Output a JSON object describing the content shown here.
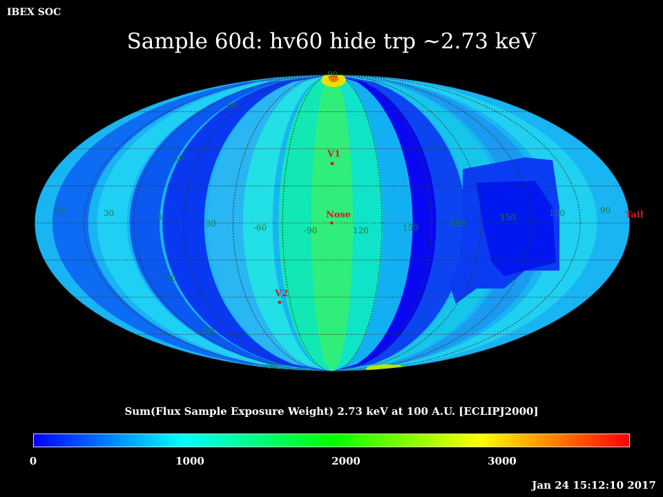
{
  "header": {
    "corner_label": "IBEX SOC",
    "title": "Sample 60d: hv60 hide trp ~2.73 keV"
  },
  "map": {
    "lat_labels": {
      "top": "90",
      "n60": "60",
      "n30": "30",
      "s30": "-30",
      "s60": "-60",
      "bottom": "-90"
    },
    "lon_labels": [
      "60",
      "30",
      "0",
      "-30",
      "-60",
      "-90",
      "120",
      "150",
      "180",
      "150",
      "120",
      "90"
    ],
    "markers": {
      "v1": "V1",
      "nose": "Nose",
      "v2": "V2",
      "tail": "Tail"
    },
    "marker_color": "#cc2222",
    "grid_label_color": "#1f7a3a"
  },
  "colorbar": {
    "title": "Sum(Flux Sample Exposure Weight)  2.73 keV at 100 A.U. [ECLIPJ2000]",
    "ticks": [
      "0",
      "1000",
      "2000",
      "3000"
    ],
    "range": [
      0,
      3850
    ],
    "stops": [
      "#0000ff",
      "#00ffff",
      "#00ff00",
      "#ffff00",
      "#ff0000"
    ]
  },
  "footer": {
    "timestamp": "Jan 24 15:12:10 2017"
  }
}
